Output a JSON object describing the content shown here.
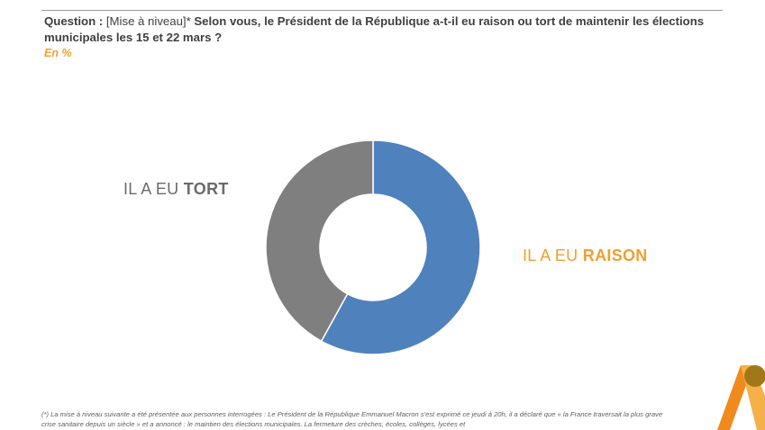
{
  "question": {
    "label": "Question :",
    "tag": "[Mise à niveau]*",
    "text": "Selon vous, le Président de la République a-t-il eu raison ou tort de maintenir les élections municipales les 15 et 22 mars ?"
  },
  "unit": "En %",
  "chart_data": {
    "type": "pie",
    "donut": true,
    "title": "Selon vous, le Président de la République a-t-il eu raison ou tort de maintenir les élections municipales les 15 et 22 mars ?",
    "unit": "%",
    "slices": [
      {
        "name": "IL A EU RAISON",
        "prefix": "IL A EU",
        "emphasis": "RAISON",
        "value": 58,
        "color": "#4f81bd"
      },
      {
        "name": "IL A EU TORT",
        "prefix": "IL A EU",
        "emphasis": "TORT",
        "value": 42,
        "color": "#7f7f7f"
      }
    ],
    "start": "top",
    "direction": "clockwise",
    "data_labels": false
  },
  "footnote": {
    "text": "(*) La mise à niveau suivante a été présentée aux personnes interrogées : Le Président de la République Emmanuel Macron s'est exprimé ce jeudi à 20h, il a déclaré que « la France traversait la plus grave crise sanitaire depuis un siècle » et a annoncé : le maintien des élections municipales. La fermeture des crèches, écoles, collèges, lycées et"
  },
  "colors": {
    "accent": "#f0a030",
    "raison": "#4f81bd",
    "tort": "#7f7f7f"
  }
}
